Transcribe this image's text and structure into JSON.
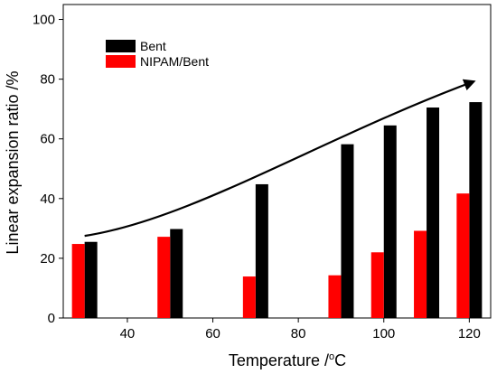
{
  "chart_data": {
    "type": "bar",
    "xlabel": "Temperature /",
    "xlabel_unit_sup": "o",
    "xlabel_unit": "C",
    "ylabel": "Linear expansion ratio /%",
    "xlim": [
      25,
      125
    ],
    "ylim": [
      0,
      105
    ],
    "xticks": [
      40,
      60,
      80,
      100,
      120
    ],
    "yticks": [
      0,
      20,
      40,
      60,
      80,
      100
    ],
    "legend_position": "top-left",
    "categories": [
      30,
      50,
      70,
      90,
      100,
      110,
      120
    ],
    "series": [
      {
        "name": "Bent",
        "color": "#000000",
        "values": [
          25.5,
          29.8,
          44.8,
          58.2,
          64.5,
          70.5,
          72.3
        ]
      },
      {
        "name": "NIPAM/Bent",
        "color": "#ff0000",
        "values": [
          24.8,
          27.2,
          13.9,
          14.3,
          22.0,
          29.2,
          41.7
        ]
      }
    ],
    "trend_arrow": true,
    "grid": false
  }
}
